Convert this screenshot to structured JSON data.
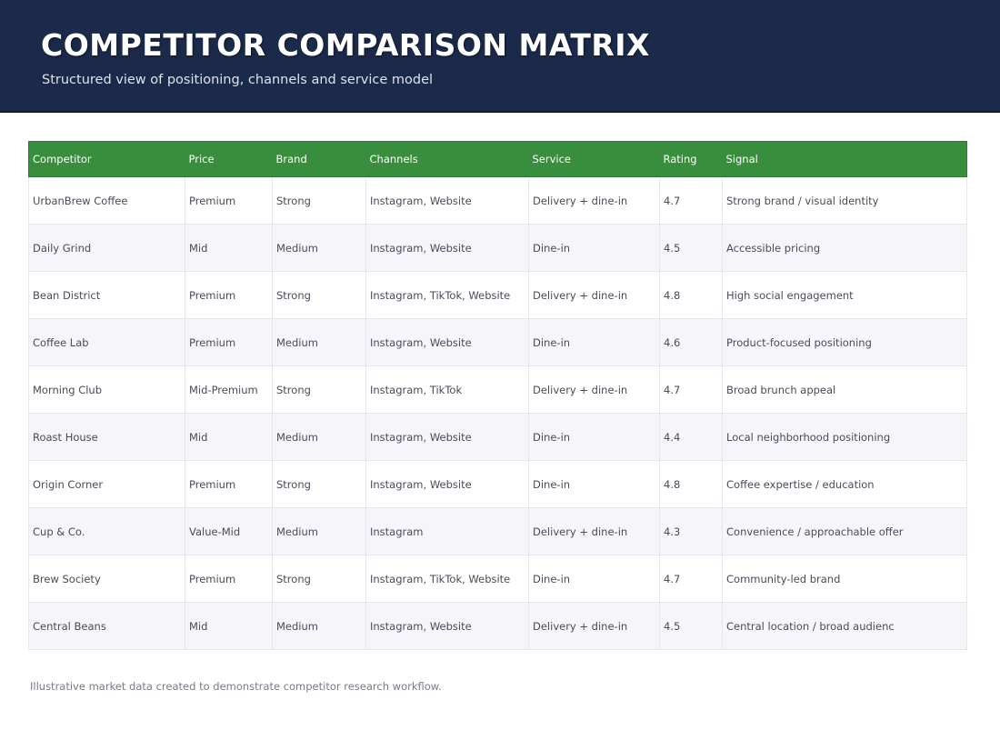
{
  "header": {
    "title": "COMPETITOR COMPARISON MATRIX",
    "subtitle": "Structured view of positioning, channels and service model"
  },
  "table": {
    "columns": [
      "Competitor",
      "Price",
      "Brand",
      "Channels",
      "Service",
      "Rating",
      "Signal"
    ],
    "rows": [
      [
        "UrbanBrew Coffee",
        "Premium",
        "Strong",
        "Instagram, Website",
        "Delivery + dine-in",
        4.7,
        "Strong brand / visual identity"
      ],
      [
        "Daily Grind",
        "Mid",
        "Medium",
        "Instagram, Website",
        "Dine-in",
        4.5,
        "Accessible pricing"
      ],
      [
        "Bean District",
        "Premium",
        "Strong",
        "Instagram, TikTok, Website",
        "Delivery + dine-in",
        4.8,
        "High social engagement"
      ],
      [
        "Coffee Lab",
        "Premium",
        "Medium",
        "Instagram, Website",
        "Dine-in",
        4.6,
        "Product-focused positioning"
      ],
      [
        "Morning Club",
        "Mid-Premium",
        "Strong",
        "Instagram, TikTok",
        "Delivery + dine-in",
        4.7,
        "Broad brunch appeal"
      ],
      [
        "Roast House",
        "Mid",
        "Medium",
        "Instagram, Website",
        "Dine-in",
        4.4,
        "Local neighborhood positioning"
      ],
      [
        "Origin Corner",
        "Premium",
        "Strong",
        "Instagram, Website",
        "Dine-in",
        4.8,
        "Coffee expertise / education"
      ],
      [
        "Cup & Co.",
        "Value-Mid",
        "Medium",
        "Instagram",
        "Delivery + dine-in",
        4.3,
        "Convenience / approachable offer"
      ],
      [
        "Brew Society",
        "Premium",
        "Strong",
        "Instagram, TikTok, Website",
        "Dine-in",
        4.7,
        "Community-led brand"
      ],
      [
        "Central Beans",
        "Mid",
        "Medium",
        "Instagram, Website",
        "Delivery + dine-in",
        4.5,
        "Central location / broad audienc"
      ]
    ]
  },
  "footnote": "Illustrative market data created to demonstrate competitor research workflow."
}
